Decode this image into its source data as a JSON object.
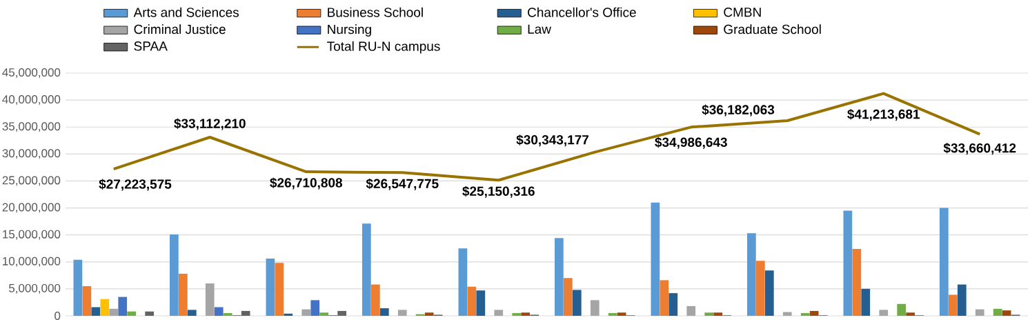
{
  "chart_data": {
    "type": "bar",
    "categories": [
      null,
      null,
      null,
      null,
      null,
      null,
      null,
      null,
      null,
      null
    ],
    "series": [
      {
        "name": "Arts and Sciences",
        "color": "#5b9bd5",
        "values": [
          10400000,
          15100000,
          10600000,
          17100000,
          12500000,
          14400000,
          21000000,
          15300000,
          19500000,
          20000000
        ]
      },
      {
        "name": "Business School",
        "color": "#ed7d31",
        "values": [
          5500000,
          7800000,
          9800000,
          5800000,
          5400000,
          7000000,
          6600000,
          10200000,
          12400000,
          3900000
        ]
      },
      {
        "name": "Chancellor's Office",
        "color": "#255e91",
        "values": [
          1600000,
          1100000,
          400000,
          1400000,
          4700000,
          4800000,
          4200000,
          8400000,
          5000000,
          5800000
        ]
      },
      {
        "name": "CMBN",
        "color": "#ffc000",
        "values": [
          3100000,
          null,
          null,
          null,
          null,
          null,
          null,
          null,
          null,
          null
        ]
      },
      {
        "name": "Criminal Justice",
        "color": "#a5a5a5",
        "values": [
          1300000,
          6000000,
          1200000,
          1100000,
          1100000,
          2900000,
          1800000,
          700000,
          1100000,
          1200000
        ]
      },
      {
        "name": "Nursing",
        "color": "#4472c4",
        "values": [
          3500000,
          1600000,
          2900000,
          null,
          null,
          null,
          null,
          null,
          null,
          null
        ]
      },
      {
        "name": "Law",
        "color": "#70ad47",
        "values": [
          800000,
          500000,
          600000,
          300000,
          500000,
          500000,
          600000,
          500000,
          2200000,
          1300000
        ]
      },
      {
        "name": "Graduate School",
        "color": "#9e480e",
        "values": [
          null,
          100000,
          100000,
          600000,
          600000,
          600000,
          600000,
          900000,
          600000,
          1000000
        ]
      },
      {
        "name": "SPAA",
        "color": "#636363",
        "values": [
          800000,
          900000,
          900000,
          200000,
          200000,
          100000,
          100000,
          100000,
          100000,
          200000
        ]
      },
      {
        "name": "Total RU-N campus",
        "type": "line",
        "color": "#997300",
        "values": [
          27223575,
          33112210,
          26710808,
          26547775,
          25150316,
          30343177,
          34986643,
          36182063,
          41213681,
          33660412
        ],
        "value_labels": [
          "$27,223,575",
          "$33,112,210",
          "$26,710,808",
          "$26,547,775",
          "$25,150,316",
          "$30,343,177",
          "$34,986,643",
          "$36,182,063",
          "$41,213,681",
          "$33,660,412"
        ]
      }
    ],
    "ylim": [
      0,
      45000000
    ],
    "yticks": [
      {
        "value": 0,
        "label": "0"
      },
      {
        "value": 5000000,
        "label": "5,000,000"
      },
      {
        "value": 10000000,
        "label": "10,000,000"
      },
      {
        "value": 15000000,
        "label": "15,000,000"
      },
      {
        "value": 20000000,
        "label": "20,000,000"
      },
      {
        "value": 25000000,
        "label": "25,000,000"
      },
      {
        "value": 30000000,
        "label": "30,000,000"
      },
      {
        "value": 35000000,
        "label": "35,000,000"
      },
      {
        "value": 40000000,
        "label": "40,000,000"
      },
      {
        "value": 45000000,
        "label": "45,000,000"
      }
    ],
    "grid": "y",
    "legend": "top",
    "tick_labels": "y"
  }
}
